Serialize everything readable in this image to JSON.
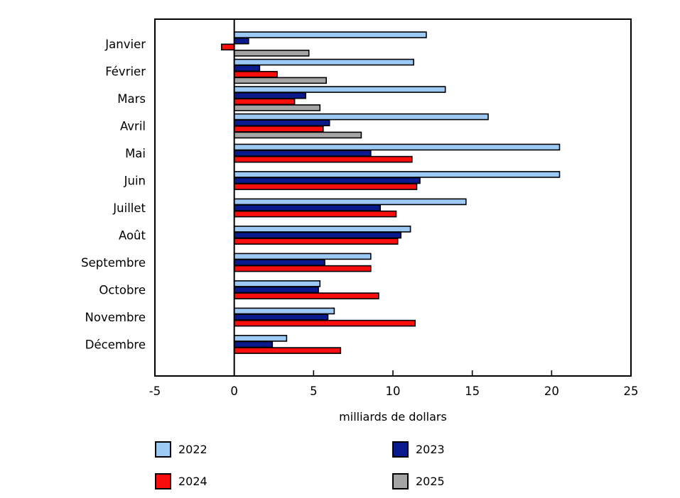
{
  "chart_data": {
    "type": "bar",
    "orientation": "horizontal",
    "title": "",
    "xlabel": "milliards de dollars",
    "xlim": [
      -5,
      25
    ],
    "xticks": [
      -5,
      0,
      5,
      10,
      15,
      20,
      25
    ],
    "grid": false,
    "legend_position": "bottom",
    "categories": [
      "Janvier",
      "Février",
      "Mars",
      "Avril",
      "Mai",
      "Juin",
      "Juillet",
      "Août",
      "Septembre",
      "Octobre",
      "Novembre",
      "Décembre"
    ],
    "series": [
      {
        "name": "2022",
        "color": "#9DC9F5",
        "values": [
          12.1,
          11.3,
          13.3,
          16.0,
          20.5,
          20.5,
          14.6,
          11.1,
          8.6,
          5.4,
          6.3,
          3.3
        ]
      },
      {
        "name": "2023",
        "color": "#0A1A8C",
        "values": [
          0.9,
          1.6,
          4.5,
          6.0,
          8.6,
          11.7,
          9.2,
          10.5,
          5.7,
          5.3,
          5.9,
          2.4
        ]
      },
      {
        "name": "2024",
        "color": "#F90D0D",
        "values": [
          -0.8,
          2.7,
          3.8,
          5.6,
          11.2,
          11.5,
          10.2,
          10.3,
          8.6,
          9.1,
          11.4,
          6.7
        ]
      },
      {
        "name": "2025",
        "color": "#A5A5A5",
        "values": [
          4.7,
          5.8,
          5.4,
          8.0,
          null,
          null,
          null,
          null,
          null,
          null,
          null,
          null
        ]
      }
    ],
    "axis_color": "#000000",
    "bar_border_color": "#000000"
  }
}
